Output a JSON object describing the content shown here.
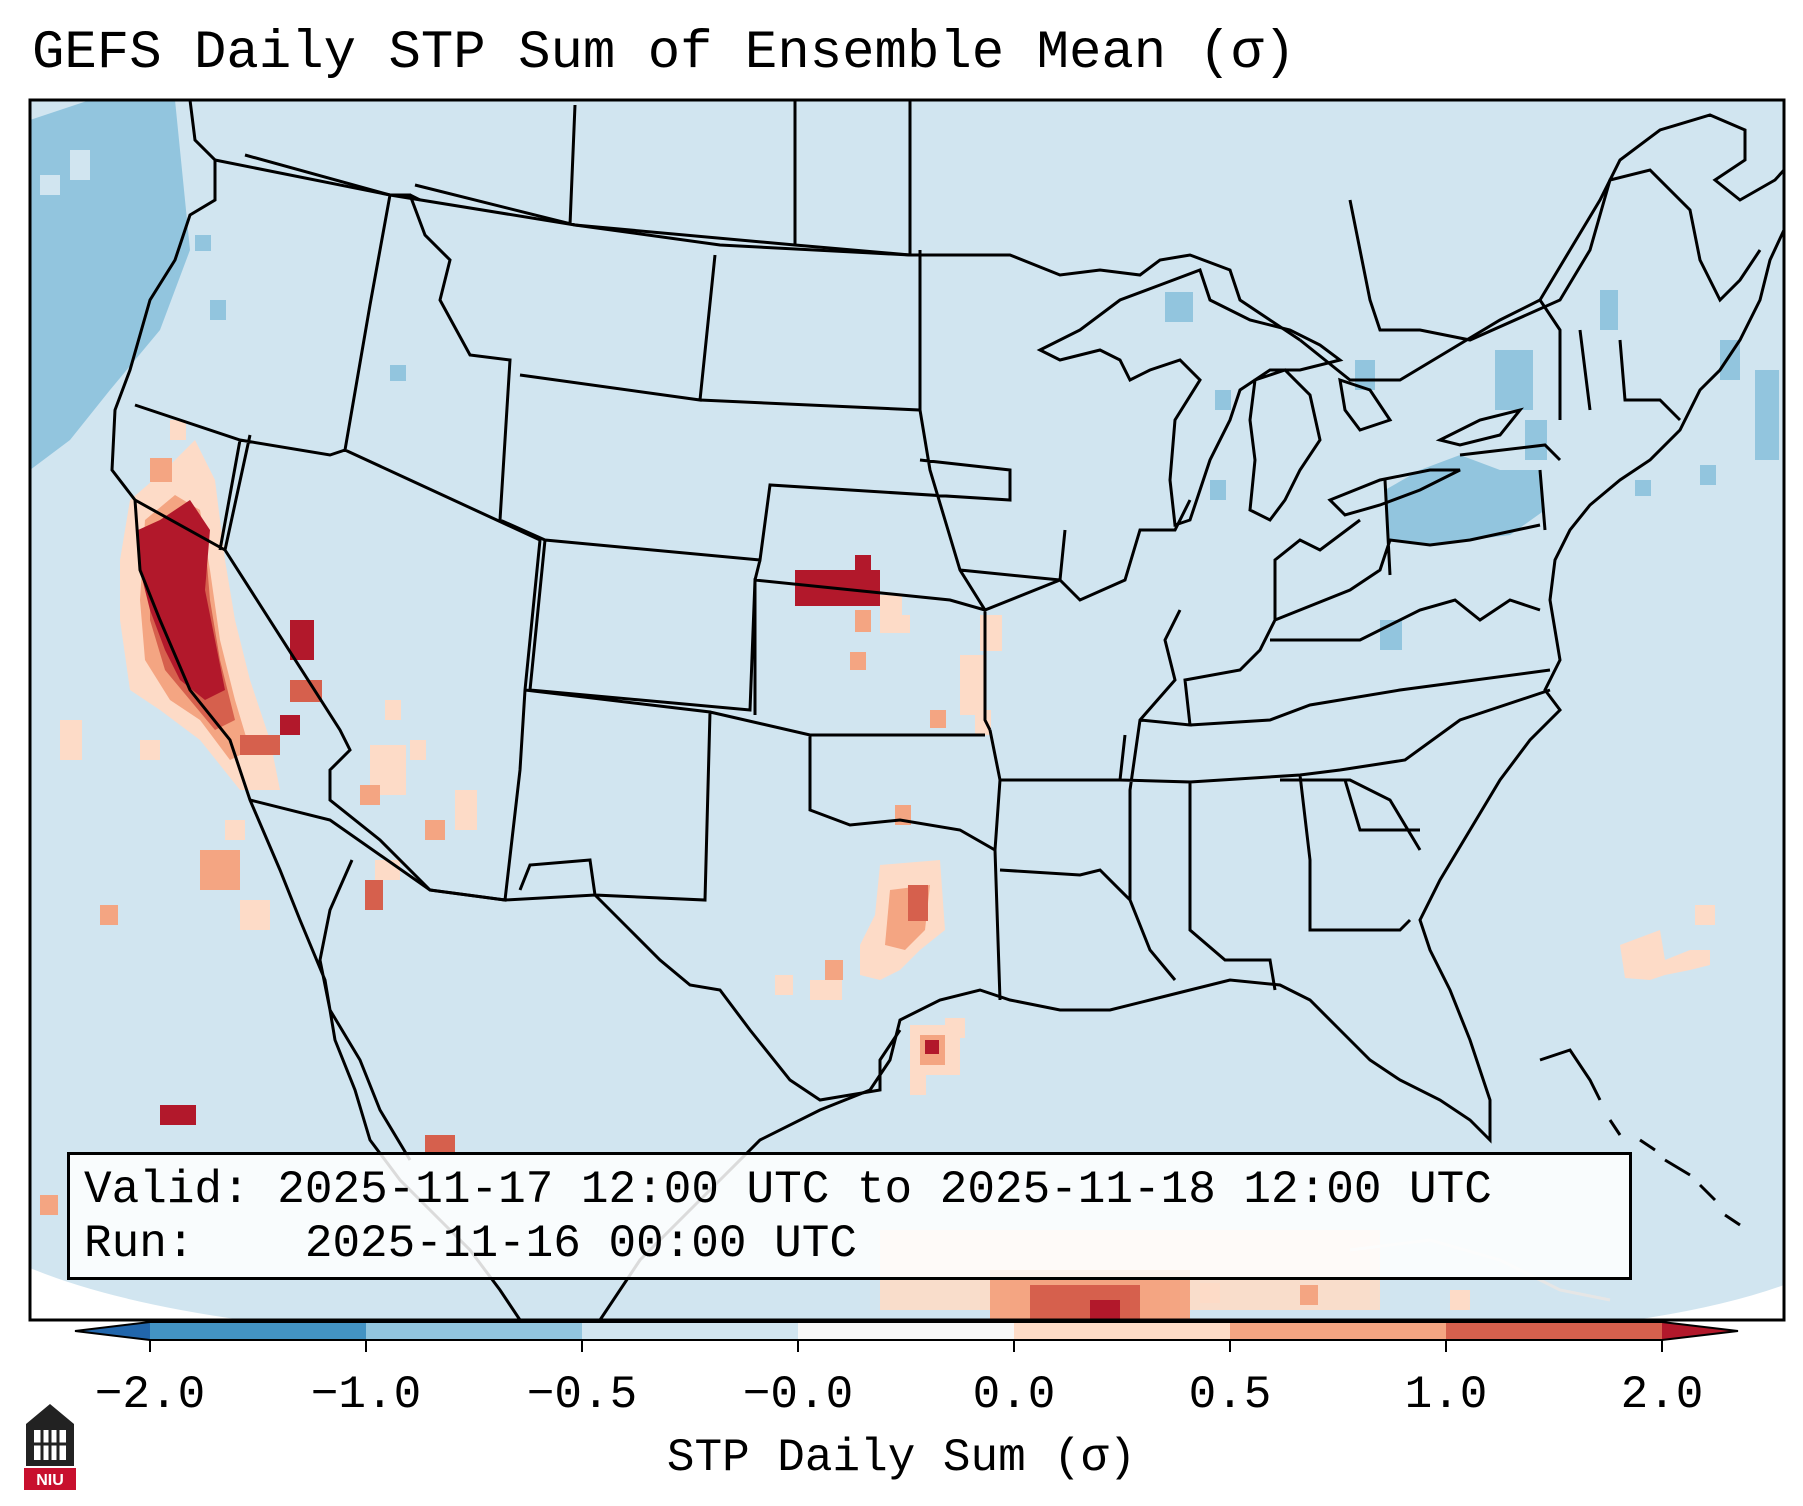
{
  "title": "GEFS Daily STP Sum of Ensemble Mean (σ)",
  "info": {
    "valid_label": "Valid:",
    "valid_value": "2025-11-17 12:00 UTC to 2025-11-18 12:00 UTC",
    "run_label": "Run:",
    "run_value": "2025-11-16 00:00 UTC"
  },
  "colorbar": {
    "label": "STP Daily Sum (σ)",
    "ticks": [
      "−2.0",
      "−1.0",
      "−0.5",
      "−0.0",
      "0.0",
      "0.5",
      "1.0",
      "2.0"
    ],
    "segment_colors": [
      "#4393c3",
      "#92c5de",
      "#d1e5f0",
      "#f7f7f7",
      "#fddbc7",
      "#f4a582",
      "#d6604d"
    ],
    "under_color": "#2166ac",
    "over_color": "#b2182b"
  },
  "map": {
    "ocean_color": "#d1e5f0",
    "boundary_color": "#000000",
    "anomaly_regions": [
      {
        "area": "California Central Valley",
        "category": "above 2.0"
      },
      {
        "area": "Southern Nevada",
        "category": "1.0 to 2.0"
      },
      {
        "area": "Southern California / Baja",
        "category": "0.5 to 1.0"
      },
      {
        "area": "Western Arizona",
        "category": "0.0 to 0.5"
      },
      {
        "area": "Southern Nebraska",
        "category": "above 2.0"
      },
      {
        "area": "Eastern Kansas / Western Missouri",
        "category": "0.0 to 0.5"
      },
      {
        "area": "North-central Texas",
        "category": "1.0 to 2.0"
      },
      {
        "area": "Upper Texas coast",
        "category": "above 2.0"
      },
      {
        "area": "Gulf of Mexico south",
        "category": "1.0 to 2.0"
      },
      {
        "area": "Western Atlantic",
        "category": "0.0 to 0.5"
      },
      {
        "area": "Pacific Northwest offshore",
        "category": "-1.0 to -0.5"
      },
      {
        "area": "Pennsylvania / New York",
        "category": "-1.0 to -0.5"
      },
      {
        "area": "Upper Michigan",
        "category": "-1.0 to -0.5"
      }
    ]
  },
  "logo": {
    "text": "NIU"
  }
}
